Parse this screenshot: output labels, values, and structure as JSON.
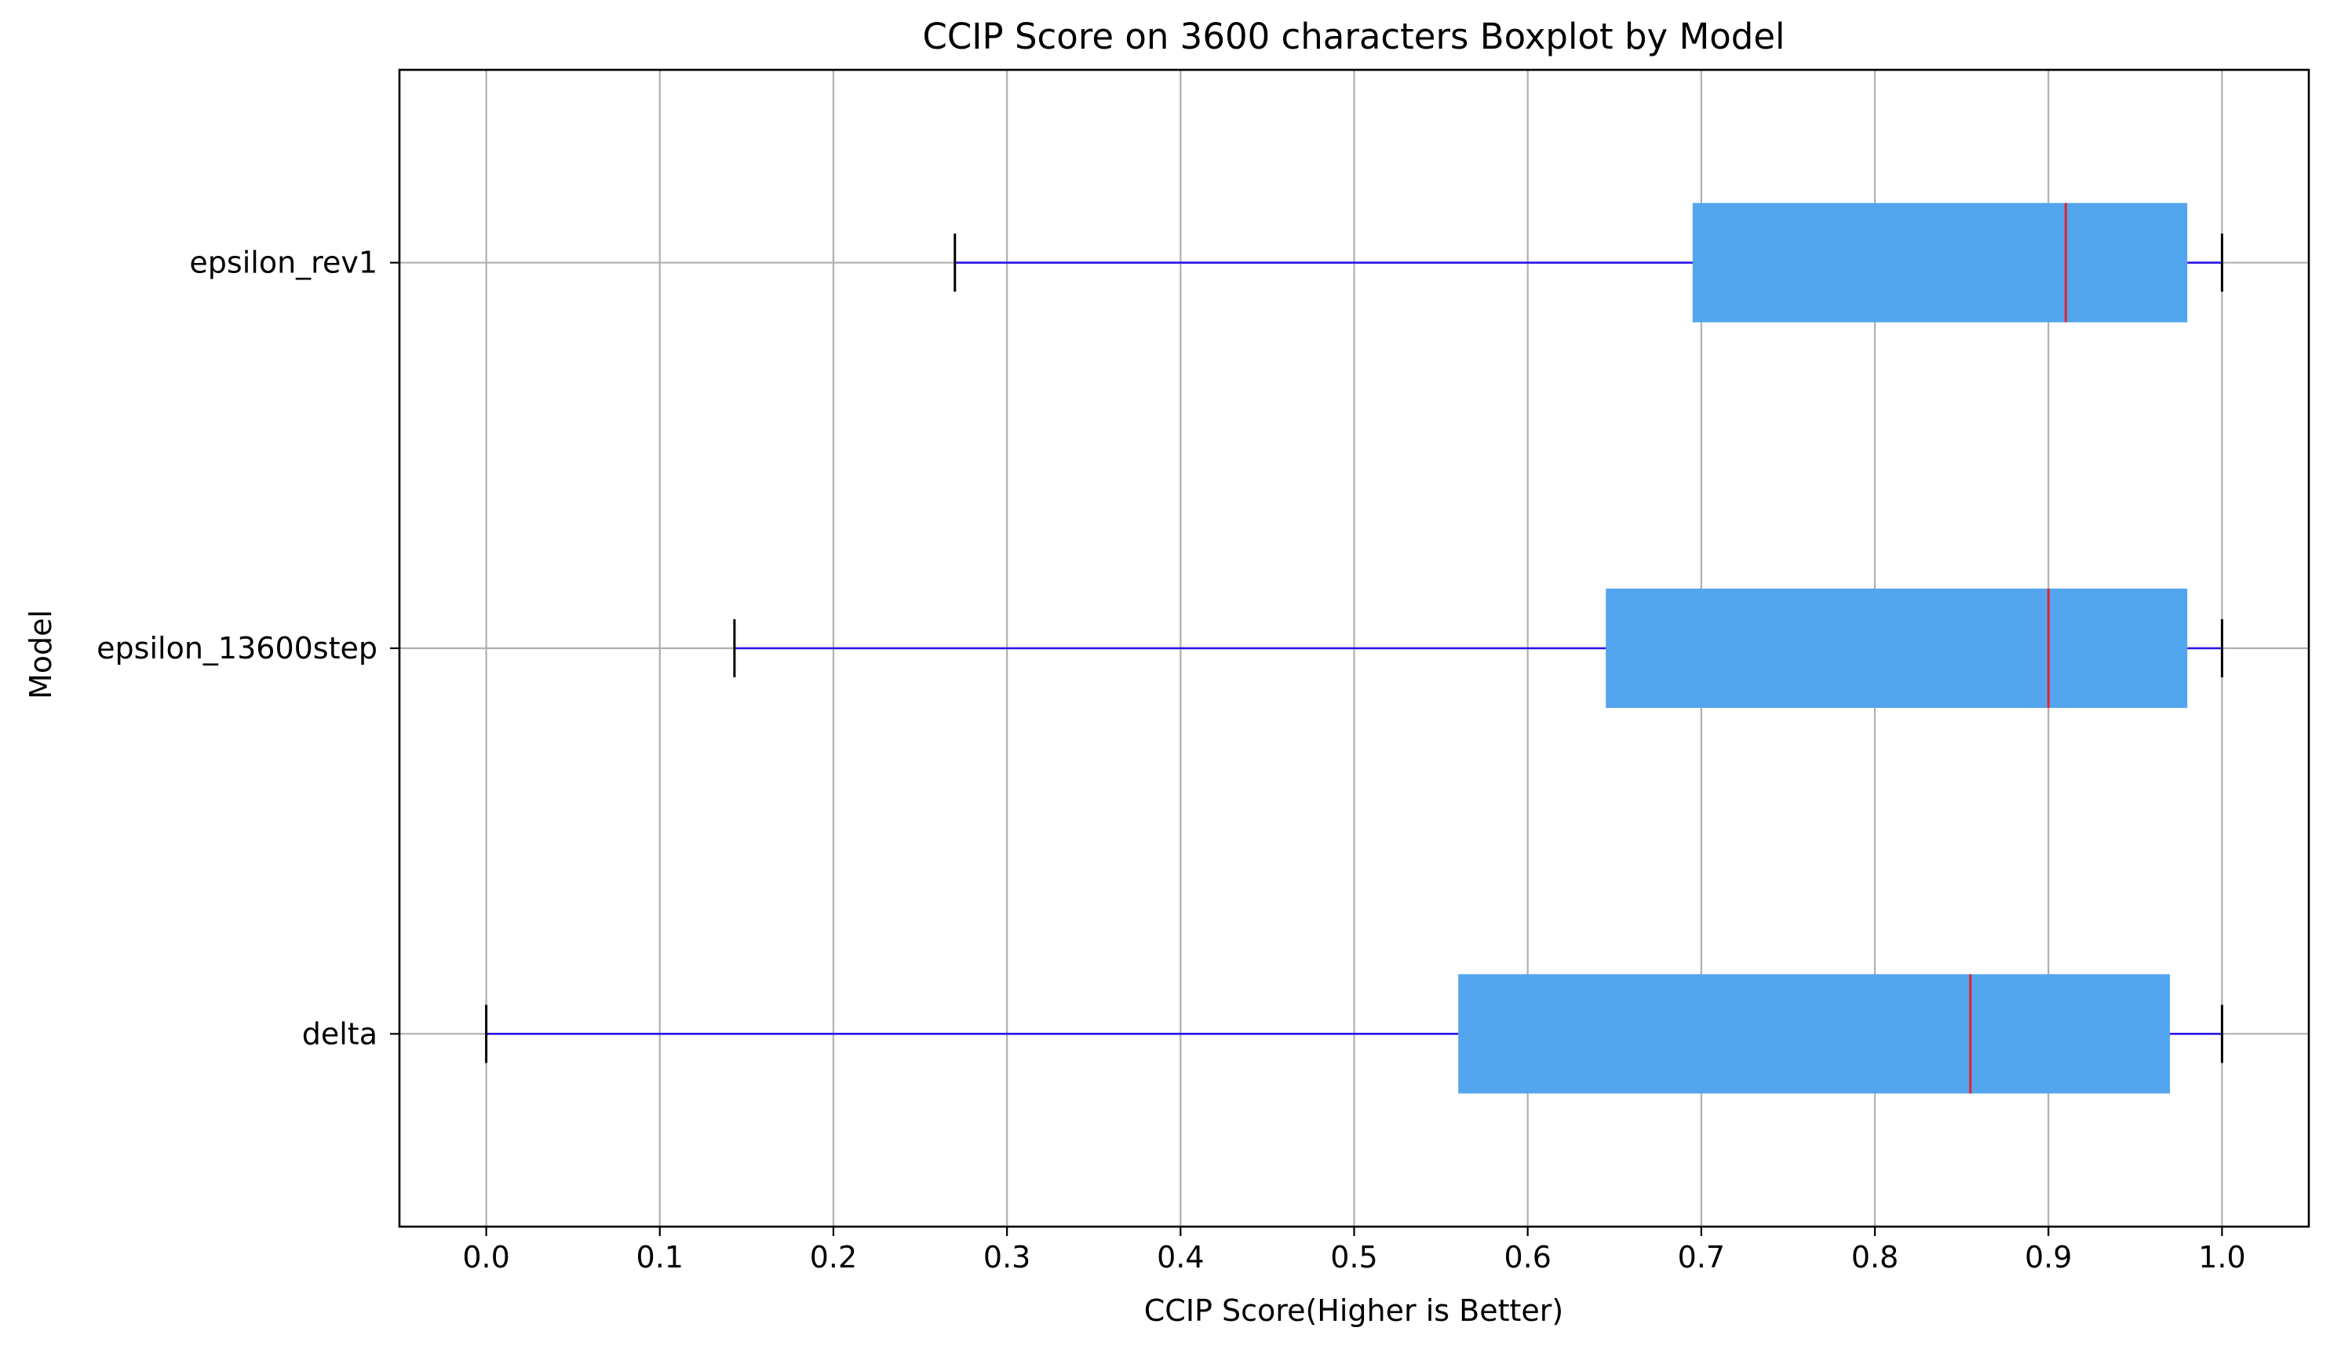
{
  "chart_data": {
    "type": "boxplot",
    "orientation": "horizontal",
    "title": "CCIP Score on 3600 characters Boxplot by Model",
    "xlabel": "CCIP Score(Higher is Better)",
    "ylabel": "Model",
    "xlim": [
      -0.05,
      1.05
    ],
    "xticks": [
      0.0,
      0.1,
      0.2,
      0.3,
      0.4,
      0.5,
      0.6,
      0.7,
      0.8,
      0.9,
      1.0
    ],
    "xtick_labels": [
      "0.0",
      "0.1",
      "0.2",
      "0.3",
      "0.4",
      "0.5",
      "0.6",
      "0.7",
      "0.8",
      "0.9",
      "1.0"
    ],
    "grid": true,
    "categories": [
      "delta",
      "epsilon_13600step",
      "epsilon_rev1"
    ],
    "boxes": [
      {
        "category": "delta",
        "whisker_low": 0.0,
        "q1": 0.56,
        "median": 0.855,
        "q3": 0.97,
        "whisker_high": 1.0
      },
      {
        "category": "epsilon_13600step",
        "whisker_low": 0.143,
        "q1": 0.645,
        "median": 0.9,
        "q3": 0.98,
        "whisker_high": 1.0
      },
      {
        "category": "epsilon_rev1",
        "whisker_low": 0.27,
        "q1": 0.695,
        "median": 0.91,
        "q3": 0.98,
        "whisker_high": 1.0
      }
    ],
    "colors": {
      "box_fill": "#53a5ee",
      "median": "#e8212b",
      "whisker": "#2a14e6",
      "cap": "#000000",
      "grid": "#b0b0b0"
    }
  }
}
